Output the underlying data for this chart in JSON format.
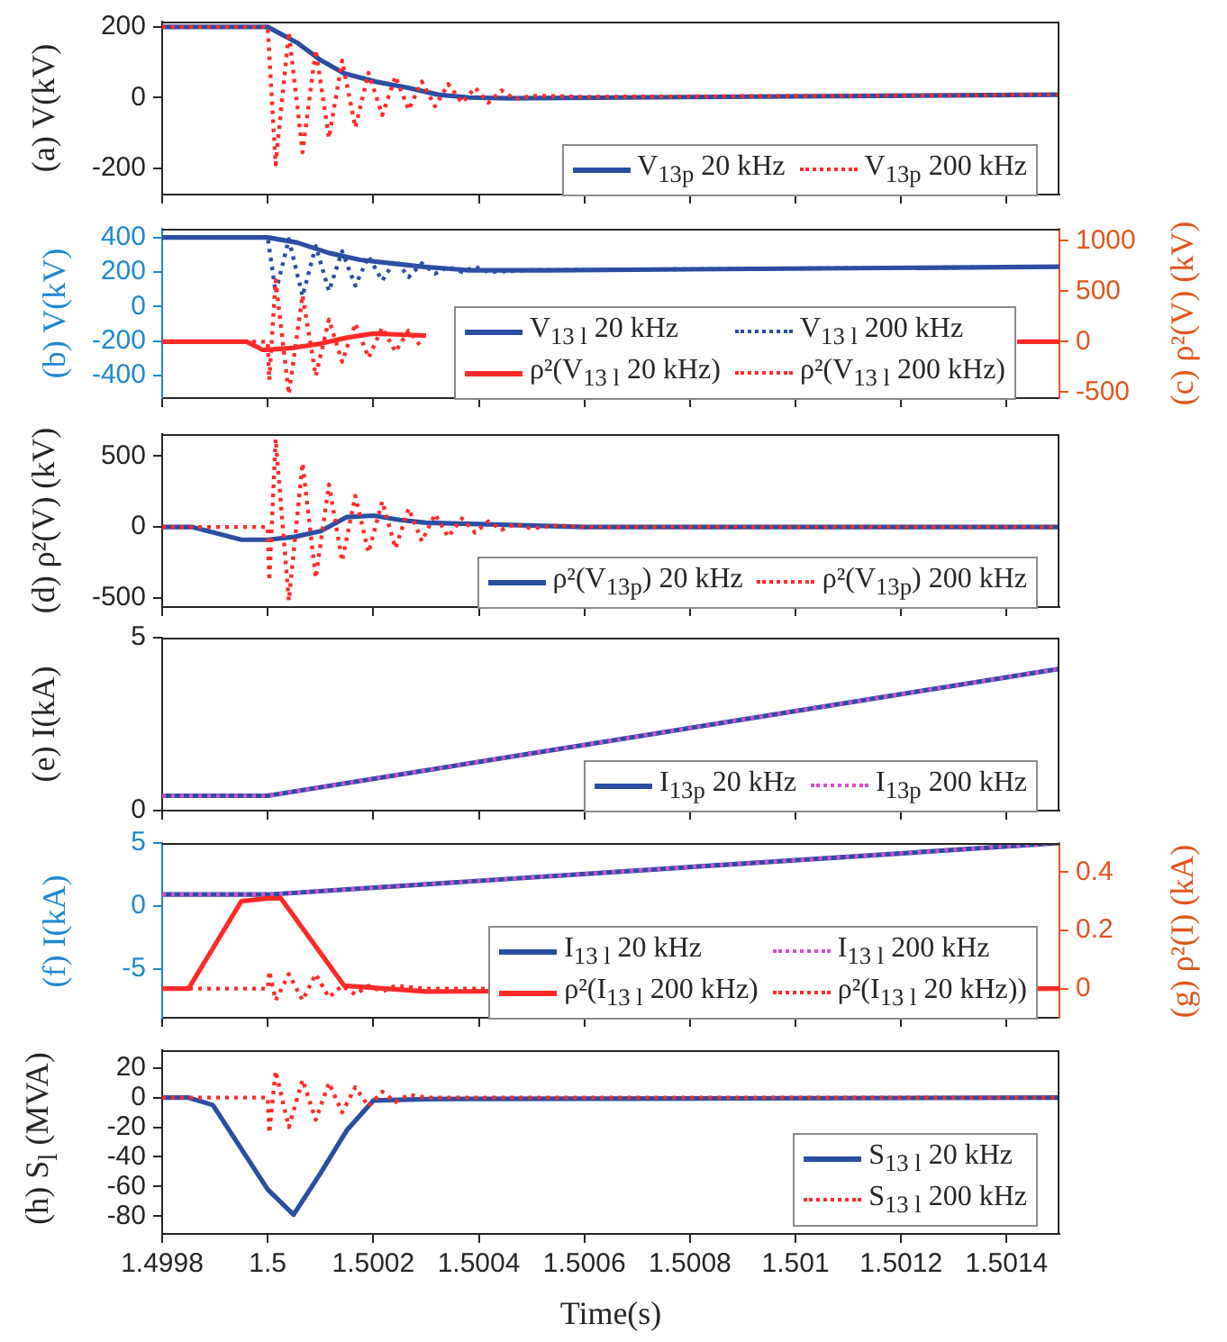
{
  "chart_data": [
    {
      "type": "line",
      "ylabel": "(a) V(kV)",
      "xlim": [
        1.4998,
        1.5015
      ],
      "xticks": [
        1.4998,
        1.5,
        1.5002,
        1.5004,
        1.5006,
        1.5008,
        1.501,
        1.5012,
        1.5014
      ],
      "ylim": [
        -275,
        215
      ],
      "yticks": [
        -200,
        0,
        200
      ],
      "tick_labels": "y",
      "legend": "bottom right",
      "series": [
        {
          "name": "V$_{13p}$ 20 kHz",
          "color": "#2b4ea2",
          "line_style": "solid",
          "x": [
            1.4998,
            1.5,
            1.500056,
            1.500101,
            1.500145,
            1.500204,
            1.500264,
            1.500323,
            1.500382,
            1.500456,
            1.5015
          ],
          "values": [
            200,
            200,
            155,
            105,
            68,
            45,
            28,
            8,
            0,
            -2,
            8
          ]
        },
        {
          "name": "V$_{13p}$ 200 kHz",
          "color": "#ff2a2a",
          "line_style": "dotted",
          "x": [
            1.4998,
            1.5,
            1.500015,
            1.50004,
            1.500066,
            1.500091,
            1.500116,
            1.500141,
            1.500166,
            1.500191,
            1.500217,
            1.500242,
            1.500267,
            1.500292,
            1.500317,
            1.500342,
            1.500368,
            1.500393,
            1.500418,
            1.500443,
            1.500468,
            1.5005,
            1.5006,
            1.5008,
            1.5015
          ],
          "values": [
            200,
            200,
            -190,
            185,
            -155,
            135,
            -115,
            105,
            -85,
            70,
            -50,
            60,
            -35,
            45,
            -25,
            38,
            -15,
            28,
            -15,
            20,
            -5,
            5,
            2,
            3,
            8
          ]
        }
      ]
    },
    {
      "type": "line",
      "ylabel": "(b) V(kV)",
      "y2label": "(c) ρ²(V) (kV)",
      "xlim": [
        1.4998,
        1.5015
      ],
      "xticks": [
        1.4998,
        1.5,
        1.5002,
        1.5004,
        1.5006,
        1.5008,
        1.501,
        1.5012,
        1.5014
      ],
      "ylim": [
        -530,
        450
      ],
      "yticks": [
        -400,
        -200,
        0,
        200,
        400
      ],
      "y2lim": [
        -560,
        1120
      ],
      "y2ticks": [
        -500,
        0,
        500,
        1000
      ],
      "tick_labels": "y",
      "legend": "bottom right",
      "series": [
        {
          "name": "V$_{13 l}$ 20 kHz",
          "color": "#2b4ea2",
          "line_style": "solid",
          "x": [
            1.4998,
            1.5,
            1.500056,
            1.500116,
            1.500175,
            1.500234,
            1.500293,
            1.500382,
            1.50053,
            1.5015
          ],
          "values": [
            400,
            400,
            370,
            310,
            270,
            250,
            230,
            210,
            210,
            230
          ]
        },
        {
          "name": "V$_{13 l}$ 200 kHz",
          "color": "#2b4ea2",
          "line_style": "dotted",
          "x": [
            1.4998,
            1.5,
            1.500015,
            1.50004,
            1.500066,
            1.500091,
            1.500116,
            1.500141,
            1.500166,
            1.500191,
            1.500217,
            1.500242,
            1.500267,
            1.500292,
            1.500317,
            1.500342,
            1.500368,
            1.500393,
            1.500418,
            1.5005,
            1.5015
          ],
          "values": [
            400,
            400,
            80,
            390,
            60,
            350,
            90,
            320,
            120,
            290,
            150,
            270,
            170,
            250,
            190,
            230,
            200,
            230,
            200,
            210,
            230
          ]
        },
        {
          "name": "ρ²(V$_{13 l}$ 20 kHz)",
          "color": "#ff2a2a",
          "line_style": "solid",
          "axis": "y2",
          "x": [
            1.4998,
            1.49996,
            1.49999,
            1.5,
            1.50005,
            1.5001,
            1.50015,
            1.5002,
            1.50025,
            1.5003,
            1.5005,
            1.50142,
            1.5015
          ],
          "values": [
            0,
            0,
            -80,
            -80,
            -60,
            -20,
            40,
            80,
            70,
            60,
            null,
            0,
            0
          ]
        },
        {
          "name": "ρ²(V$_{13 l}$ 200 kHz)",
          "color": "#ff2a2a",
          "line_style": "dotted",
          "axis": "y2",
          "x": [
            1.4998,
            1.5,
            1.500003,
            1.500015,
            1.50004,
            1.500066,
            1.500091,
            1.500116,
            1.500141,
            1.500166,
            1.500191,
            1.500217,
            1.500242,
            1.500267,
            1.500292,
            1.500317,
            1.500342,
            1.500368,
            1.500393,
            1.500418,
            1.500443,
            1.5005,
            1.50142,
            1.5015
          ],
          "values": [
            0,
            0,
            -380,
            610,
            -520,
            460,
            -340,
            220,
            -200,
            180,
            -160,
            140,
            -100,
            110,
            -60,
            null,
            null,
            null,
            null,
            null,
            null,
            null,
            0,
            0
          ]
        }
      ]
    },
    {
      "type": "line",
      "ylabel": "(d) ρ²(V) (kV)",
      "xlim": [
        1.4998,
        1.5015
      ],
      "xticks": [
        1.4998,
        1.5,
        1.5002,
        1.5004,
        1.5006,
        1.5008,
        1.501,
        1.5012,
        1.5014
      ],
      "ylim": [
        -565,
        655
      ],
      "yticks": [
        -500,
        0,
        500
      ],
      "tick_labels": "y",
      "legend": "bottom right",
      "series": [
        {
          "name": "ρ²(V$_{13p}$) 20 kHz",
          "color": "#2b4ea2",
          "line_style": "solid",
          "x": [
            1.4998,
            1.499856,
            1.49995,
            1.5,
            1.50005,
            1.5001,
            1.50015,
            1.5002,
            1.50025,
            1.5003,
            1.5004,
            1.5006,
            1.5015
          ],
          "values": [
            0,
            0,
            -90,
            -90,
            -70,
            -30,
            70,
            80,
            50,
            30,
            20,
            0,
            0
          ]
        },
        {
          "name": "ρ²(V$_{13p}$) 200 kHz",
          "color": "#ff2a2a",
          "line_style": "dotted",
          "x": [
            1.4998,
            1.5,
            1.500003,
            1.500015,
            1.50004,
            1.500066,
            1.500091,
            1.500116,
            1.500141,
            1.500166,
            1.500191,
            1.500217,
            1.500242,
            1.500267,
            1.500292,
            1.500317,
            1.500342,
            1.500368,
            1.500393,
            1.500418,
            1.500443,
            1.500468,
            1.5005,
            1.50055,
            1.5006,
            1.5015
          ],
          "values": [
            0,
            0,
            -380,
            620,
            -520,
            450,
            -360,
            300,
            -240,
            220,
            -180,
            180,
            -150,
            130,
            -100,
            90,
            -70,
            60,
            -40,
            40,
            -20,
            20,
            -10,
            10,
            0,
            0
          ]
        }
      ]
    },
    {
      "type": "line",
      "ylabel": "(e) I(kA)",
      "xlim": [
        1.4998,
        1.5015
      ],
      "xticks": [
        1.4998,
        1.5,
        1.5002,
        1.5004,
        1.5006,
        1.5008,
        1.501,
        1.5012,
        1.5014
      ],
      "ylim": [
        0,
        5
      ],
      "yticks": [
        0,
        5
      ],
      "tick_labels": "y",
      "legend": "bottom right",
      "series": [
        {
          "name": "I$_{13p}$ 20 kHz",
          "color": "#2b4ea2",
          "line_style": "solid",
          "x": [
            1.4998,
            1.5,
            1.5015
          ],
          "values": [
            0.43,
            0.43,
            4.1
          ]
        },
        {
          "name": "I$_{13p}$ 200 kHz",
          "color": "#d04fd0",
          "line_style": "dotted",
          "x": [
            1.4998,
            1.5,
            1.5015
          ],
          "values": [
            0.43,
            0.43,
            4.1
          ]
        }
      ]
    },
    {
      "type": "line",
      "ylabel": "(f) I(kA)",
      "y2label": "(g) ρ²(I) (kA)",
      "xlim": [
        1.4998,
        1.5015
      ],
      "xticks": [
        1.4998,
        1.5,
        1.5002,
        1.5004,
        1.5006,
        1.5008,
        1.501,
        1.5012,
        1.5014
      ],
      "ylim": [
        -8.9,
        5
      ],
      "yticks": [
        -5,
        0,
        5
      ],
      "y2lim": [
        -0.1,
        0.5
      ],
      "y2ticks": [
        0,
        0.2,
        0.4
      ],
      "tick_labels": "y",
      "legend": "bottom right",
      "series": [
        {
          "name": "I$_{13 l}$ 20 kHz",
          "color": "#2b4ea2",
          "line_style": "solid",
          "x": [
            1.4998,
            1.5,
            1.5015
          ],
          "values": [
            0.9,
            0.9,
            5
          ]
        },
        {
          "name": "I$_{13 l}$ 200 kHz",
          "color": "#d04fd0",
          "line_style": "dotted",
          "x": [
            1.4998,
            1.5,
            1.5015
          ],
          "values": [
            0.9,
            0.9,
            5
          ]
        },
        {
          "name": "ρ²(I$_{13 l}$ 200 kHz)",
          "color": "#ff2a2a",
          "line_style": "solid",
          "axis": "y2",
          "x": [
            1.4998,
            1.49985,
            1.49995,
            1.5,
            1.500025,
            1.500145,
            1.5003,
            1.5015
          ],
          "values": [
            0,
            0,
            0.3,
            0.31,
            0.31,
            0.01,
            -0.01,
            0
          ]
        },
        {
          "name": "ρ²(I$_{13 l}$ 20 kHz))",
          "color": "#ff2a2a",
          "line_style": "dotted",
          "axis": "y2",
          "x": [
            1.4998,
            1.5,
            1.500003,
            1.500015,
            1.50004,
            1.500066,
            1.500091,
            1.500116,
            1.500141,
            1.500166,
            1.500191,
            1.500217,
            1.500242,
            1.5003,
            1.5015
          ],
          "values": [
            0,
            0,
            0.06,
            -0.04,
            0.05,
            -0.04,
            0.05,
            -0.03,
            0.01,
            -0.02,
            0.01,
            -0.01,
            0.01,
            0,
            0
          ]
        }
      ]
    },
    {
      "type": "line",
      "ylabel": "(h) S$_{l}$ (MVA)",
      "xlabel": "Time(s)",
      "xlim": [
        1.4998,
        1.5015
      ],
      "xticks": [
        1.4998,
        1.5,
        1.5002,
        1.5004,
        1.5006,
        1.5008,
        1.501,
        1.5012,
        1.5014
      ],
      "ylim": [
        -92,
        32
      ],
      "yticks": [
        -80,
        -60,
        -40,
        -20,
        0,
        20
      ],
      "legend": "bottom right",
      "series": [
        {
          "name": "S$_{13 l}$ 20 kHz",
          "color": "#2b4ea2",
          "line_style": "solid",
          "x": [
            1.4998,
            1.49985,
            1.499896,
            1.5,
            1.500049,
            1.5001,
            1.50015,
            1.5002,
            1.5003,
            1.5015
          ],
          "values": [
            0,
            0,
            -5,
            -62,
            -79,
            -51,
            -22,
            -2,
            -1,
            0
          ]
        },
        {
          "name": "S$_{13 l}$ 200 kHz",
          "color": "#ff2a2a",
          "line_style": "dotted",
          "x": [
            1.4998,
            1.5,
            1.500003,
            1.500015,
            1.50004,
            1.500066,
            1.500091,
            1.500116,
            1.500141,
            1.500166,
            1.500191,
            1.500217,
            1.500242,
            1.500267,
            1.5003,
            1.5015
          ],
          "values": [
            0,
            0,
            -24,
            18,
            -20,
            12,
            -15,
            10,
            -10,
            7,
            -6,
            4,
            -3,
            2,
            0,
            0
          ]
        }
      ]
    }
  ]
}
